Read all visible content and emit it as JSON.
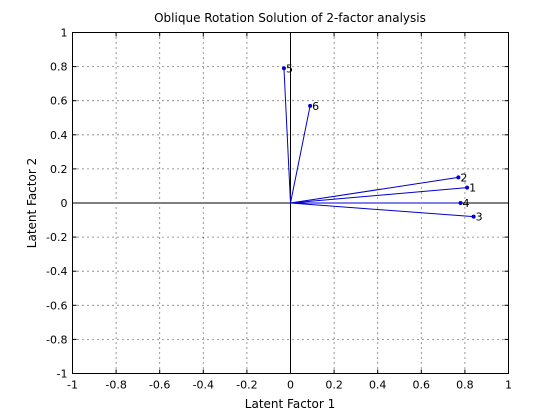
{
  "chart_data": {
    "type": "scatter",
    "title": "Oblique Rotation Solution of 2-factor analysis",
    "xlabel": "Latent Factor 1",
    "ylabel": "Latent Factor 2",
    "xlim": [
      -1,
      1
    ],
    "ylim": [
      -1,
      1
    ],
    "xticks": [
      "-1",
      "-0.8",
      "-0.6",
      "-0.4",
      "-0.2",
      "0",
      "0.2",
      "0.4",
      "0.6",
      "0.8",
      "1"
    ],
    "yticks": [
      "-1",
      "-0.8",
      "-0.6",
      "-0.4",
      "-0.2",
      "0",
      "0.2",
      "0.4",
      "0.6",
      "0.8",
      "1"
    ],
    "grid": true,
    "series_color": "#0000cc",
    "points": [
      {
        "label": "1",
        "x": 0.81,
        "y": 0.09
      },
      {
        "label": "2",
        "x": 0.77,
        "y": 0.15
      },
      {
        "label": "3",
        "x": 0.84,
        "y": -0.08
      },
      {
        "label": "4",
        "x": 0.78,
        "y": 0.0
      },
      {
        "label": "5",
        "x": -0.03,
        "y": 0.79
      },
      {
        "label": "6",
        "x": 0.09,
        "y": 0.57
      }
    ]
  }
}
